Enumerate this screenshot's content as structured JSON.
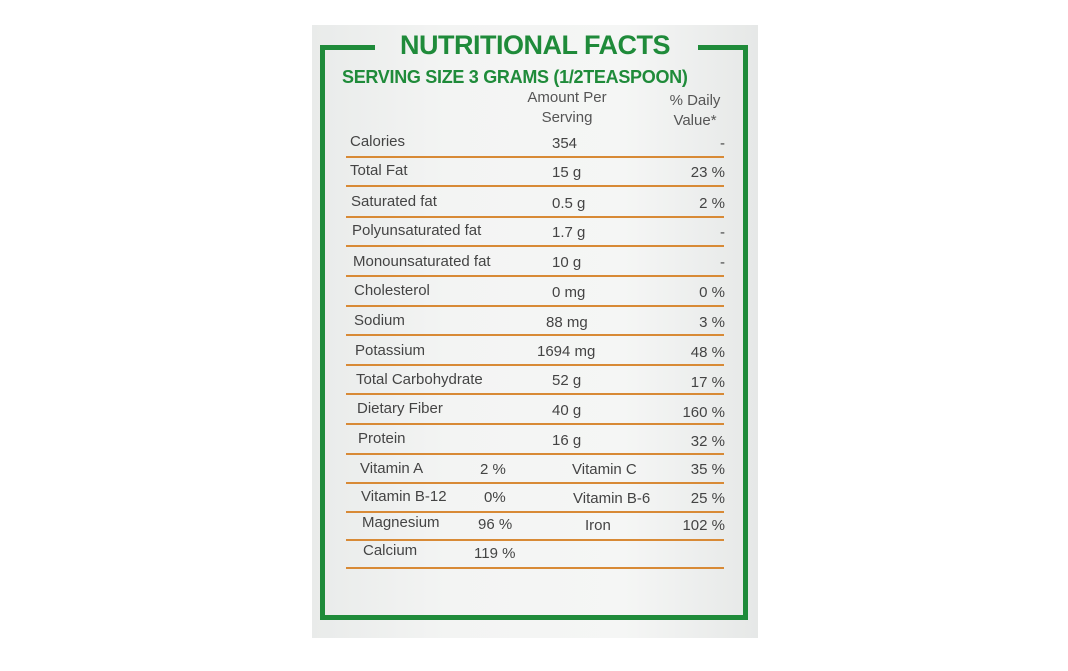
{
  "label": {
    "title": "NUTRITIONAL FACTS",
    "serving_size": "SERVING SIZE 3 GRAMS (1/2TEASPOON)",
    "col_amount": "Amount Per Serving",
    "col_amount_line1": "Amount Per",
    "col_amount_line2": "Serving",
    "col_dv_line1": "% Daily",
    "col_dv_line2": "Value*"
  },
  "rows": [
    {
      "label": "Calories",
      "amount": "354",
      "dv": "-"
    },
    {
      "label": "Total Fat",
      "amount": "15 g",
      "dv": "23 %"
    },
    {
      "label": "Saturated fat",
      "amount": "0.5 g",
      "dv": "2 %"
    },
    {
      "label": "Polyunsaturated fat",
      "amount": "1.7 g",
      "dv": "-"
    },
    {
      "label": "Monounsaturated fat",
      "amount": "10 g",
      "dv": "-"
    },
    {
      "label": "Cholesterol",
      "amount": "0 mg",
      "dv": "0 %"
    },
    {
      "label": "Sodium",
      "amount": "88 mg",
      "dv": "3 %"
    },
    {
      "label": "Potassium",
      "amount": "1694 mg",
      "dv": "48 %"
    },
    {
      "label": "Total Carbohydrate",
      "amount": "52 g",
      "dv": "17 %"
    },
    {
      "label": "Dietary Fiber",
      "amount": "40 g",
      "dv": "160 %"
    },
    {
      "label": "Protein",
      "amount": "16 g",
      "dv": "32 %"
    }
  ],
  "vitamins": [
    {
      "left_label": "Vitamin A",
      "left_value": "2 %",
      "right_label": "Vitamin C",
      "right_value": "35 %"
    },
    {
      "left_label": "Vitamin B-12",
      "left_value": "0%",
      "right_label": "Vitamin B-6",
      "right_value": "25 %"
    },
    {
      "left_label": "Magnesium",
      "left_value": "96 %",
      "right_label": "Iron",
      "right_value": "102 %"
    },
    {
      "left_label": "Calcium",
      "left_value": "119 %",
      "right_label": "",
      "right_value": ""
    }
  ],
  "colors": {
    "frame_green": "#1f8b3a",
    "rule_orange": "#d88a36",
    "text_gray": "#444444"
  }
}
